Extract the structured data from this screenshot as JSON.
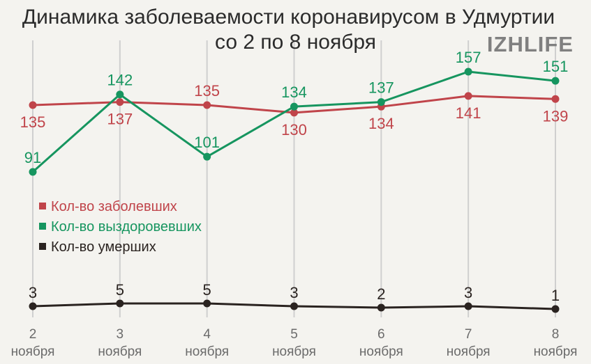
{
  "title_line1": "Динамика заболеваемости коронавирусом в Удмуртии",
  "title_line2": "со 2 по 8 ноября",
  "logo": "IZHLIFE",
  "chart_data": {
    "type": "line",
    "categories": [
      "2 ноября",
      "3 ноября",
      "4 ноября",
      "5 ноября",
      "6 ноября",
      "7 ноября",
      "8 ноября"
    ],
    "x_tick_numbers": [
      "2",
      "3",
      "4",
      "5",
      "6",
      "7",
      "8"
    ],
    "x_tick_word": "ноября",
    "series": [
      {
        "name": "Кол-во заболевших",
        "color": "#c0444a",
        "values": [
          135,
          137,
          135,
          130,
          134,
          141,
          139
        ]
      },
      {
        "name": "Кол-во выздоровевших",
        "color": "#16955f",
        "values": [
          91,
          142,
          101,
          134,
          137,
          157,
          151
        ]
      },
      {
        "name": "Кол-во умерших",
        "color": "#2a2320",
        "values": [
          3,
          5,
          5,
          3,
          2,
          3,
          1
        ]
      }
    ],
    "legend_position": "left-middle",
    "grid": "vertical"
  }
}
